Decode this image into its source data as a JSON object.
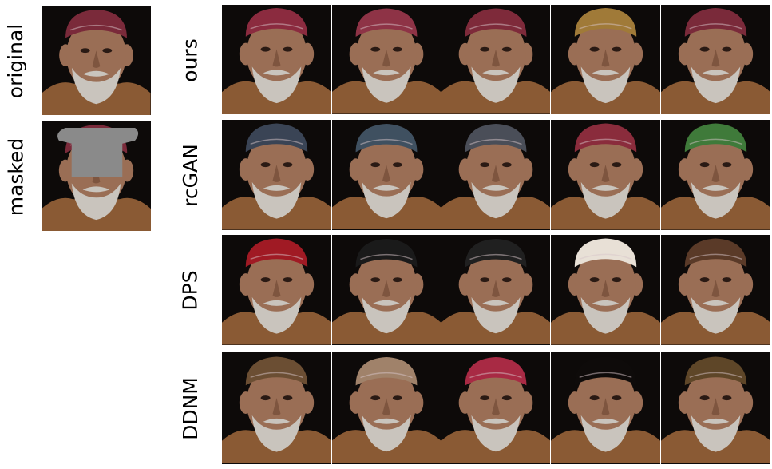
{
  "figure": {
    "left_labels": [
      "original",
      "masked"
    ],
    "row_labels": [
      "ours",
      "rcGAN",
      "DPS",
      "DDNM"
    ],
    "columns_per_row": 5
  },
  "colors": {
    "background": "#0d0a09",
    "skin": "#9a6e55",
    "beard": "#c9c4bd",
    "jacket": "#8a5a34",
    "headscarf": "#7a2a3a",
    "mask": "#8a8a8a"
  },
  "rows": [
    {
      "label": "ours",
      "hats": [
        "#8b2b3f",
        "#8e3346",
        "#7e2a3a",
        "#a07a38",
        "#7a2a3a"
      ]
    },
    {
      "label": "rcGAN",
      "hats": [
        "#3a4455",
        "#3f5060",
        "#4a4e58",
        "#8a2c3c",
        "#3f7a3a"
      ]
    },
    {
      "label": "DPS",
      "hats": [
        "#a01a24",
        "#1a1a1a",
        "#202020",
        "#e8e0d6",
        "#5a3a28"
      ]
    },
    {
      "label": "DDNM",
      "hats": [
        "#6b4e33",
        "#a0826a",
        "#a82a44",
        "#0e0b0a",
        "#5e4628"
      ]
    }
  ]
}
